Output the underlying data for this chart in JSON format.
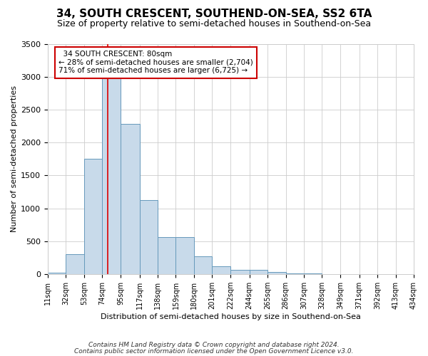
{
  "title": "34, SOUTH CRESCENT, SOUTHEND-ON-SEA, SS2 6TA",
  "subtitle": "Size of property relative to semi-detached houses in Southend-on-Sea",
  "xlabel": "Distribution of semi-detached houses by size in Southend-on-Sea",
  "ylabel": "Number of semi-detached properties",
  "footnote1": "Contains HM Land Registry data © Crown copyright and database right 2024.",
  "footnote2": "Contains public sector information licensed under the Open Government Licence v3.0.",
  "annotation_title": "34 SOUTH CRESCENT: 80sqm",
  "annotation_line1": "← 28% of semi-detached houses are smaller (2,704)",
  "annotation_line2": "71% of semi-detached houses are larger (6,725) →",
  "property_size": 80,
  "bins": [
    11,
    32,
    53,
    74,
    95,
    117,
    138,
    159,
    180,
    201,
    222,
    244,
    265,
    286,
    307,
    328,
    349,
    371,
    392,
    413,
    434
  ],
  "bar_heights": [
    20,
    300,
    1750,
    3000,
    2280,
    1130,
    570,
    560,
    270,
    120,
    65,
    65,
    30,
    8,
    8,
    4,
    3,
    1,
    1,
    0
  ],
  "bar_color": "#c8daea",
  "bar_edge_color": "#6699bb",
  "highlight_color": "#dd0000",
  "ylim": [
    0,
    3500
  ],
  "yticks": [
    0,
    500,
    1000,
    1500,
    2000,
    2500,
    3000,
    3500
  ],
  "annotation_box_color": "#ffffff",
  "annotation_box_edge": "#cc0000",
  "grid_color": "#cccccc",
  "bg_color": "#ffffff",
  "title_fontsize": 11,
  "subtitle_fontsize": 9
}
